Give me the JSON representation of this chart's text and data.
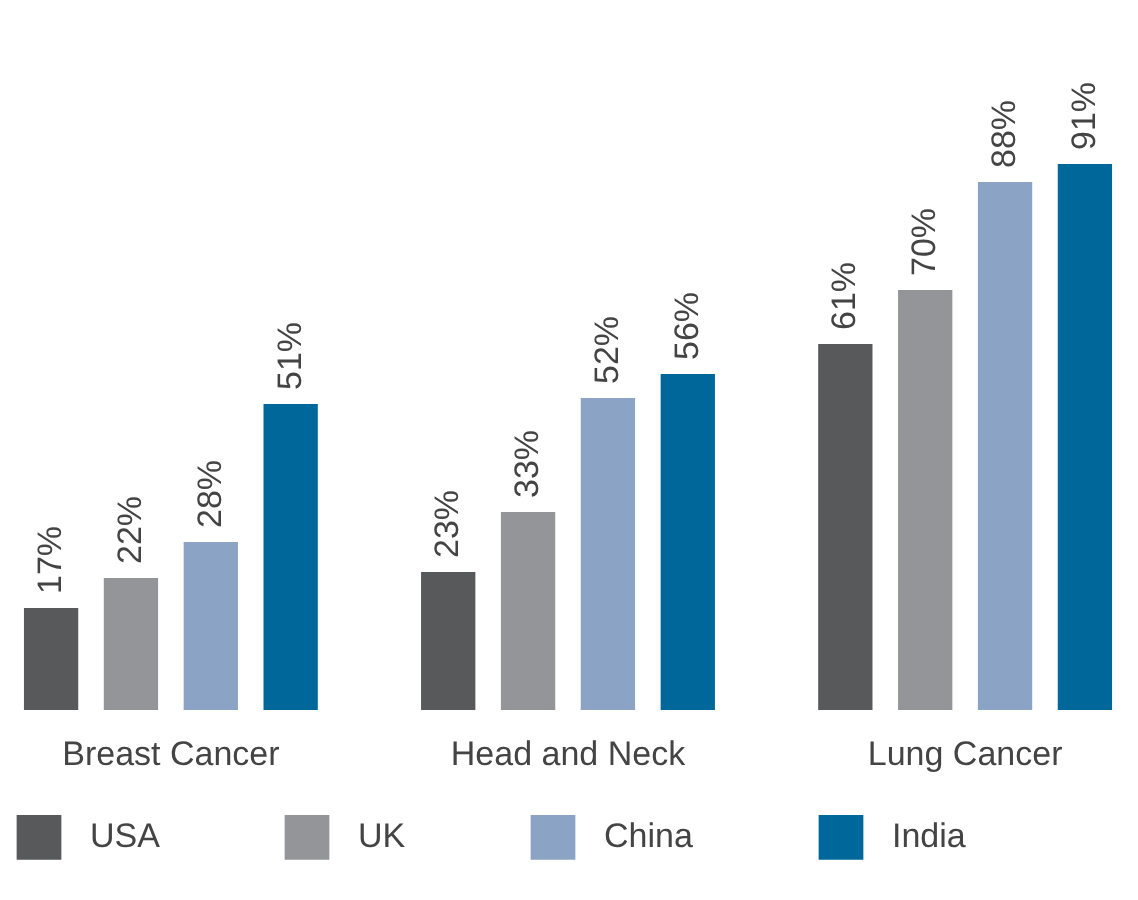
{
  "chart_data": {
    "type": "bar",
    "categories": [
      "Breast Cancer",
      "Head and Neck",
      "Lung Cancer"
    ],
    "series": [
      {
        "name": "USA",
        "color": "#58595b",
        "values": [
          17,
          23,
          61
        ],
        "value_labels": [
          "17%",
          "23%",
          "61%"
        ]
      },
      {
        "name": "UK",
        "color": "#939598",
        "values": [
          22,
          33,
          70
        ],
        "value_labels": [
          "22%",
          "33%",
          "70%"
        ]
      },
      {
        "name": "China",
        "color": "#8ba3c4",
        "values": [
          28,
          52,
          88
        ],
        "value_labels": [
          "28%",
          "52%",
          "88%"
        ]
      },
      {
        "name": "India",
        "color": "#00679a",
        "values": [
          51,
          56,
          91
        ],
        "value_labels": [
          "51%",
          "56%",
          "91%"
        ]
      }
    ],
    "grid": false,
    "legend": "bottom"
  }
}
